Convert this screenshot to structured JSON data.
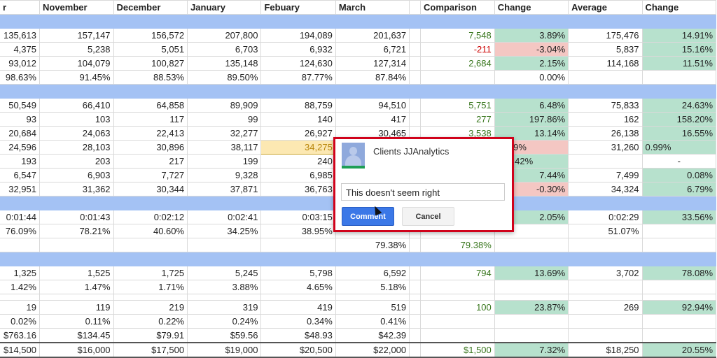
{
  "headers": [
    "r",
    "November",
    "December",
    "January",
    "Febuary",
    "March",
    "",
    "Comparison",
    "Change",
    "Average",
    "Change"
  ],
  "colors": {
    "band": "#a4c2f4",
    "positive_bg": "#b7e1cd",
    "negative_bg": "#f4c7c3",
    "positive_text": "#38761d",
    "negative_text": "#cc0000",
    "dialog_border": "#d0021b",
    "comment_button": "#3b78e7"
  },
  "rows": [
    {
      "type": "band"
    },
    {
      "cells": [
        "135,613",
        "157,147",
        "156,572",
        "207,800",
        "194,089",
        "201,637",
        "",
        "7,548",
        "3.89%",
        "175,476",
        "14.91%"
      ],
      "styles": [
        "",
        "",
        "",
        "",
        "",
        "",
        "",
        "g",
        "G",
        "",
        "G"
      ]
    },
    {
      "cells": [
        "4,375",
        "5,238",
        "5,051",
        "6,703",
        "6,932",
        "6,721",
        "",
        "-211",
        "-3.04%",
        "5,837",
        "15.16%"
      ],
      "styles": [
        "",
        "",
        "",
        "",
        "",
        "",
        "",
        "r",
        "R",
        "",
        "G"
      ]
    },
    {
      "cells": [
        "93,012",
        "104,079",
        "100,827",
        "135,148",
        "124,630",
        "127,314",
        "",
        "2,684",
        "2.15%",
        "114,168",
        "11.51%"
      ],
      "styles": [
        "",
        "",
        "",
        "",
        "",
        "",
        "",
        "g",
        "G",
        "",
        "G"
      ]
    },
    {
      "cells": [
        "98.63%",
        "91.45%",
        "88.53%",
        "89.50%",
        "87.77%",
        "87.84%",
        "",
        "",
        "0.00%",
        "",
        ""
      ],
      "styles": []
    },
    {
      "type": "band"
    },
    {
      "cells": [
        "50,549",
        "66,410",
        "64,858",
        "89,909",
        "88,759",
        "94,510",
        "",
        "5,751",
        "6.48%",
        "75,833",
        "24.63%"
      ],
      "styles": [
        "",
        "",
        "",
        "",
        "",
        "",
        "",
        "g",
        "G",
        "",
        "G"
      ]
    },
    {
      "cells": [
        "93",
        "103",
        "117",
        "99",
        "140",
        "417",
        "",
        "277",
        "197.86%",
        "162",
        "158.20%"
      ],
      "styles": [
        "",
        "",
        "",
        "",
        "",
        "",
        "",
        "g",
        "G",
        "",
        "G"
      ]
    },
    {
      "cells": [
        "20,684",
        "24,063",
        "22,413",
        "32,277",
        "26,927",
        "30,465",
        "",
        "3,538",
        "13.14%",
        "26,138",
        "16.55%"
      ],
      "styles": [
        "",
        "",
        "",
        "",
        "",
        "",
        "",
        "g",
        "G",
        "",
        "G"
      ]
    },
    {
      "cells": [
        "24,596",
        "28,103",
        "30,896",
        "38,117",
        "34,275",
        "",
        "",
        "",
        "-7.89%",
        "31,260",
        "0.99%"
      ],
      "styles": [
        "",
        "",
        "",
        "",
        "Y",
        "",
        "",
        "",
        "R l",
        "",
        "G l"
      ]
    },
    {
      "cells": [
        "193",
        "203",
        "217",
        "199",
        "240",
        "",
        "",
        "",
        "115.42%",
        "",
        "-"
      ],
      "styles": [
        "",
        "",
        "",
        "",
        "",
        "",
        "",
        "",
        "G l",
        "",
        "c"
      ]
    },
    {
      "cells": [
        "6,547",
        "6,903",
        "7,727",
        "9,328",
        "6,985",
        "",
        "",
        "",
        "7.44%",
        "7,499",
        "0.08%"
      ],
      "styles": [
        "",
        "",
        "",
        "",
        "",
        "",
        "",
        "",
        "G",
        "",
        "G"
      ]
    },
    {
      "cells": [
        "32,951",
        "31,362",
        "30,344",
        "37,871",
        "36,763",
        "",
        "",
        "",
        "-0.30%",
        "34,324",
        "6.79%"
      ],
      "styles": [
        "",
        "",
        "",
        "",
        "",
        "",
        "",
        "",
        "R",
        "",
        "G"
      ]
    },
    {
      "type": "band"
    },
    {
      "cells": [
        "0:01:44",
        "0:01:43",
        "0:02:12",
        "0:02:41",
        "0:03:15",
        "",
        "",
        "",
        "2.05%",
        "0:02:29",
        "33.56%"
      ],
      "styles": [
        "",
        "",
        "",
        "",
        "",
        "",
        "",
        "",
        "G",
        "",
        "G"
      ]
    },
    {
      "cells": [
        "76.09%",
        "78.21%",
        "40.60%",
        "34.25%",
        "38.95%",
        "",
        "",
        "",
        "",
        "51.07%",
        ""
      ],
      "styles": []
    },
    {
      "cells": [
        "",
        "",
        "",
        "",
        "",
        "79.38%",
        "",
        "79.38%",
        "",
        "",
        ""
      ],
      "styles": [
        "",
        "",
        "",
        "",
        "",
        "",
        "",
        "g",
        "",
        "",
        ""
      ]
    },
    {
      "type": "band"
    },
    {
      "cells": [
        "1,325",
        "1,525",
        "1,725",
        "5,245",
        "5,798",
        "6,592",
        "",
        "794",
        "13.69%",
        "3,702",
        "78.08%"
      ],
      "styles": [
        "",
        "",
        "",
        "",
        "",
        "",
        "",
        "g",
        "G",
        "",
        "G"
      ]
    },
    {
      "cells": [
        "1.42%",
        "1.47%",
        "1.71%",
        "3.88%",
        "4.65%",
        "5.18%",
        "",
        "",
        "",
        "",
        ""
      ],
      "styles": []
    },
    {
      "type": "gap"
    },
    {
      "cells": [
        "19",
        "119",
        "219",
        "319",
        "419",
        "519",
        "",
        "100",
        "23.87%",
        "269",
        "92.94%"
      ],
      "styles": [
        "",
        "",
        "",
        "",
        "",
        "",
        "",
        "g",
        "G",
        "",
        "G"
      ]
    },
    {
      "cells": [
        "0.02%",
        "0.11%",
        "0.22%",
        "0.24%",
        "0.34%",
        "0.41%",
        "",
        "",
        "",
        "",
        ""
      ],
      "styles": []
    },
    {
      "cells": [
        "$763.16",
        "$134.45",
        "$79.91",
        "$59.56",
        "$48.93",
        "$42.39",
        "",
        "",
        "",
        "",
        ""
      ],
      "styles": []
    },
    {
      "type": "total",
      "cells": [
        "$14,500",
        "$16,000",
        "$17,500",
        "$19,000",
        "$20,500",
        "$22,000",
        "",
        "$1,500",
        "7.32%",
        "$18,250",
        "20.55%"
      ],
      "styles": [
        "",
        "",
        "",
        "",
        "",
        "",
        "",
        "g",
        "G",
        "",
        "G"
      ]
    }
  ],
  "comment_dialog": {
    "author": "Clients JJAnalytics",
    "input_value": "This doesn't seem right",
    "comment_label": "Comment",
    "cancel_label": "Cancel",
    "avatar_icon": "user-avatar-icon",
    "cursor_icon": "mouse-pointer-icon"
  }
}
